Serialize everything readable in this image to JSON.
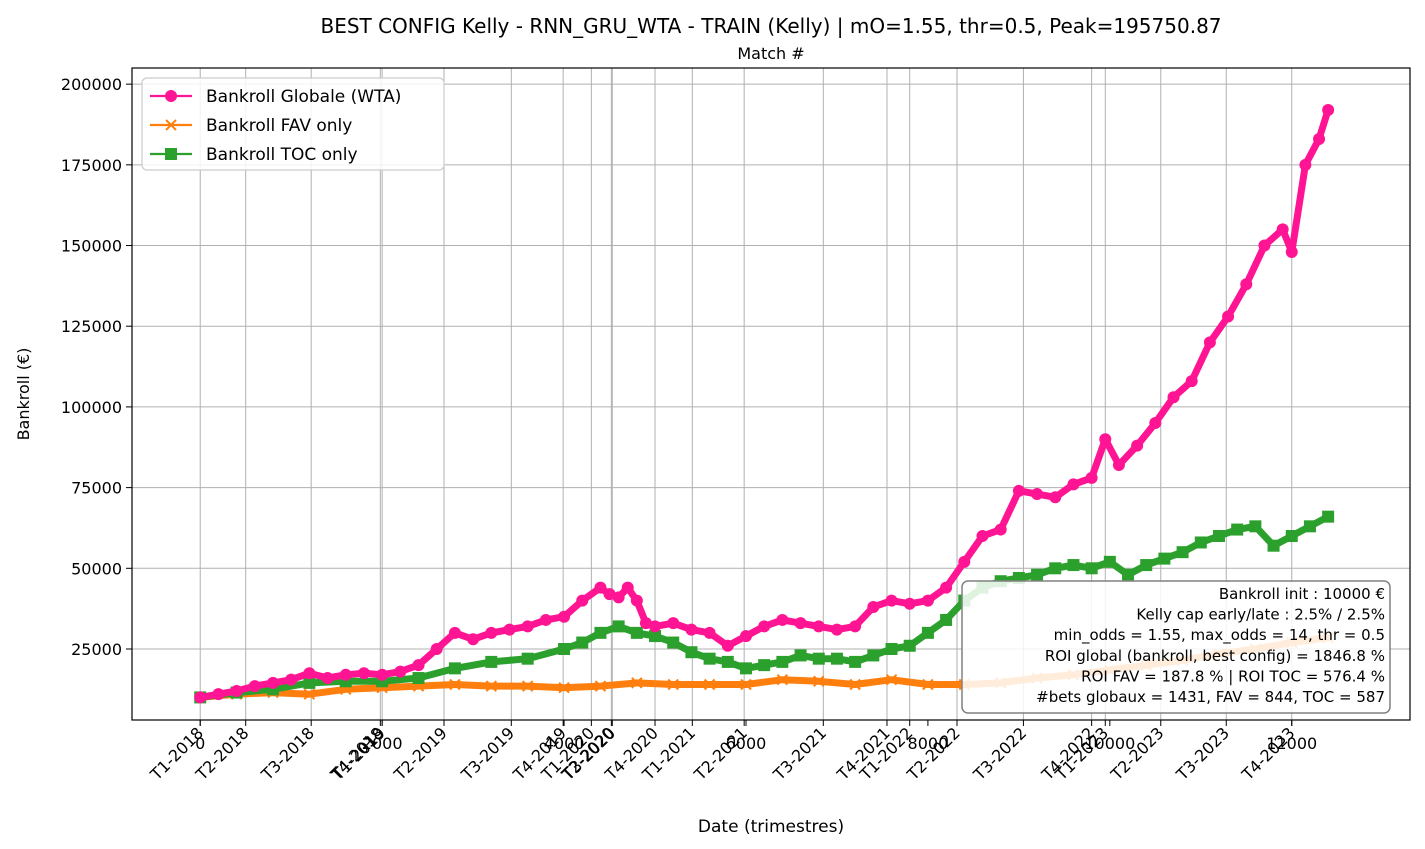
{
  "chart_data": {
    "type": "line",
    "title": "BEST CONFIG Kelly - RNN_GRU_WTA - TRAIN (Kelly) | mO=1.55, thr=0.5, Peak=195750.87",
    "secondary_xlabel": "Match #",
    "xlabel": "Date (trimestres)",
    "ylabel": "Bankroll (€)",
    "xlim": [
      -750,
      13300
    ],
    "ylim": [
      3000,
      205000
    ],
    "grid": true,
    "legend_position": "upper left",
    "yticks": [
      25000,
      50000,
      75000,
      100000,
      125000,
      150000,
      175000,
      200000
    ],
    "top_xticks": [
      0,
      2000,
      4000,
      6000,
      8000,
      10000,
      12000
    ],
    "date_ticks": [
      {
        "label": "T1-2018",
        "x": 0
      },
      {
        "label": "T2-2018",
        "x": 500
      },
      {
        "label": "T3-2018",
        "x": 1220
      },
      {
        "label": "T4-2018",
        "x": 1980
      },
      {
        "label": "T1-2019",
        "x": 2000
      },
      {
        "label": "T2-2019",
        "x": 2680
      },
      {
        "label": "T3-2019",
        "x": 3420
      },
      {
        "label": "T4-2019",
        "x": 3990
      },
      {
        "label": "T1-2020",
        "x": 4300
      },
      {
        "label": "T2-2020",
        "x": 4520
      },
      {
        "label": "T3-2020",
        "x": 4530
      },
      {
        "label": "T4-2020",
        "x": 5000
      },
      {
        "label": "T1-2021",
        "x": 5410
      },
      {
        "label": "T2-2021",
        "x": 5980
      },
      {
        "label": "T3-2021",
        "x": 6850
      },
      {
        "label": "T4-2021",
        "x": 7550
      },
      {
        "label": "T1-2022",
        "x": 7800
      },
      {
        "label": "T2-2022",
        "x": 8320
      },
      {
        "label": "T3-2022",
        "x": 9050
      },
      {
        "label": "T4-2022",
        "x": 9800
      },
      {
        "label": "T1-2023",
        "x": 9950
      },
      {
        "label": "T2-2023",
        "x": 10560
      },
      {
        "label": "T3-2023",
        "x": 11280
      },
      {
        "label": "T4-2023",
        "x": 12000
      }
    ],
    "series": [
      {
        "name": "Bankroll Globale (WTA)",
        "color": "#ff1493",
        "marker": "circle",
        "x": [
          0,
          200,
          400,
          600,
          800,
          1000,
          1200,
          1400,
          1600,
          1800,
          2000,
          2200,
          2400,
          2600,
          2800,
          3000,
          3200,
          3400,
          3600,
          3800,
          4000,
          4200,
          4400,
          4500,
          4600,
          4700,
          4800,
          4900,
          5000,
          5200,
          5400,
          5600,
          5800,
          6000,
          6200,
          6400,
          6600,
          6800,
          7000,
          7200,
          7400,
          7600,
          7800,
          8000,
          8200,
          8400,
          8600,
          8800,
          9000,
          9200,
          9400,
          9600,
          9800,
          9950,
          10100,
          10300,
          10500,
          10700,
          10900,
          11100,
          11300,
          11500,
          11700,
          11900,
          12000,
          12150,
          12300,
          12400
        ],
        "values": [
          10000,
          11000,
          12000,
          13500,
          14500,
          15500,
          17500,
          16000,
          17000,
          17500,
          17000,
          18000,
          20000,
          25000,
          30000,
          28000,
          30000,
          31000,
          32000,
          34000,
          35000,
          40000,
          44000,
          42000,
          41000,
          44000,
          40000,
          33000,
          32000,
          33000,
          31000,
          30000,
          26000,
          29000,
          32000,
          34000,
          33000,
          32000,
          31000,
          32000,
          38000,
          40000,
          39000,
          40000,
          44000,
          52000,
          60000,
          62000,
          74000,
          73000,
          72000,
          76000,
          78000,
          90000,
          82000,
          88000,
          95000,
          103000,
          108000,
          120000,
          128000,
          138000,
          150000,
          155000,
          148000,
          175000,
          183000,
          192000
        ]
      },
      {
        "name": "Bankroll FAV only",
        "color": "#ff7f0e",
        "marker": "x",
        "x": [
          0,
          400,
          800,
          1200,
          1600,
          2000,
          2400,
          2800,
          3200,
          3600,
          4000,
          4400,
          4800,
          5200,
          5600,
          6000,
          6400,
          6800,
          7200,
          7600,
          8000,
          8400,
          8800,
          9200,
          9600,
          10000,
          10400,
          10800,
          11200,
          11600,
          12000,
          12400
        ],
        "values": [
          10000,
          11000,
          11500,
          11000,
          12500,
          13000,
          13500,
          14000,
          13500,
          13500,
          13000,
          13500,
          14500,
          14000,
          14000,
          14000,
          15500,
          15000,
          14000,
          15500,
          14000,
          14000,
          14500,
          16000,
          17000,
          18500,
          20000,
          21500,
          23500,
          25000,
          27000,
          28500
        ]
      },
      {
        "name": "Bankroll TOC only",
        "color": "#2ca02c",
        "marker": "square",
        "x": [
          0,
          400,
          800,
          1200,
          1600,
          2000,
          2400,
          2800,
          3200,
          3600,
          4000,
          4200,
          4400,
          4600,
          4800,
          5000,
          5200,
          5400,
          5600,
          5800,
          6000,
          6200,
          6400,
          6600,
          6800,
          7000,
          7200,
          7400,
          7600,
          7800,
          8000,
          8200,
          8400,
          8600,
          8800,
          9000,
          9200,
          9400,
          9600,
          9800,
          10000,
          10200,
          10400,
          10600,
          10800,
          11000,
          11200,
          11400,
          11600,
          11800,
          12000,
          12200,
          12400
        ],
        "values": [
          10000,
          11500,
          12500,
          14500,
          15000,
          15000,
          16000,
          19000,
          21000,
          22000,
          25000,
          27000,
          30000,
          32000,
          30000,
          29000,
          27000,
          24000,
          22000,
          21000,
          19000,
          20000,
          21000,
          23000,
          22000,
          22000,
          21000,
          23000,
          25000,
          26000,
          30000,
          34000,
          40000,
          44000,
          46000,
          47000,
          48000,
          50000,
          51000,
          50000,
          52000,
          48000,
          51000,
          53000,
          55000,
          58000,
          60000,
          62000,
          63000,
          57000,
          60000,
          63000,
          66000
        ]
      }
    ],
    "annotation_lines": [
      "Bankroll init : 10000 €",
      "Kelly cap early/late : 2.5% / 2.5%",
      "min_odds = 1.55, max_odds = 14, thr = 0.5",
      "ROI global (bankroll, best config) = 1846.8 %",
      "ROI FAV = 187.8 % | ROI TOC = 576.4 %",
      "#bets globaux = 1431, FAV = 844, TOC = 587"
    ]
  }
}
